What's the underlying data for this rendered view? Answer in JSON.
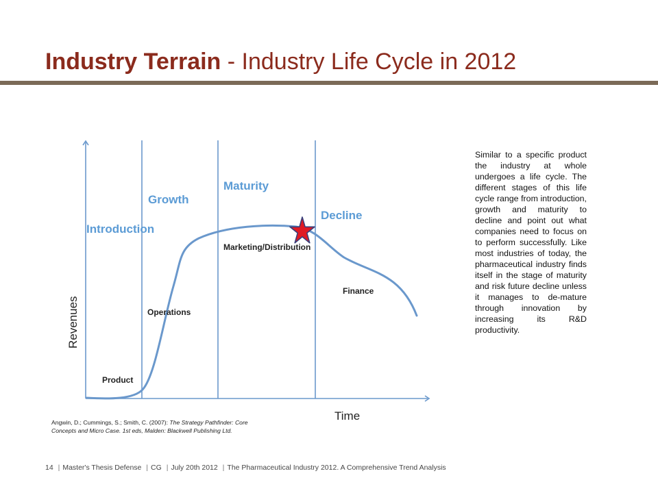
{
  "header": {
    "title_bold": "Industry Terrain",
    "title_rest": " - Industry Life Cycle in 2012"
  },
  "diagram": {
    "stages": [
      "Introduction",
      "Growth",
      "Maturity",
      "Decline"
    ],
    "focus_labels": [
      "Product",
      "Operations",
      "Marketing/Distribution",
      "Finance"
    ],
    "y_axis_label": "Revenues",
    "x_axis_label": "Time",
    "current_position_marker": "star-icon",
    "colors": {
      "stage_text": "#5B9BD5",
      "curve": "#6A98CC",
      "axis": "#6A98CC",
      "star": "#E01B24"
    }
  },
  "description": "Similar to a specific product the industry at whole undergoes a life cycle. The different stages of this life cycle range from introduction, growth and maturity to decline and point out what companies need to focus on to perform successfully. Like most industries of today, the pharmaceutical industry finds itself in the stage of maturity and risk future decline unless it manages to de-mature through innovation by increasing its R&D productivity.",
  "citation": {
    "authors": "Angwin, D.; Cummings, S.; Smith, C. (2007): ",
    "work": "The Strategy Pathfinder: Core Concepts and Micro Case. 1st eds, Malden: Blackwell Publishing Ltd."
  },
  "footer": {
    "page": "14",
    "parts": [
      "Master's Thesis Defense",
      "CG",
      "July 20th 2012",
      "The Pharmaceutical Industry 2012. A Comprehensive Trend Analysis"
    ]
  }
}
